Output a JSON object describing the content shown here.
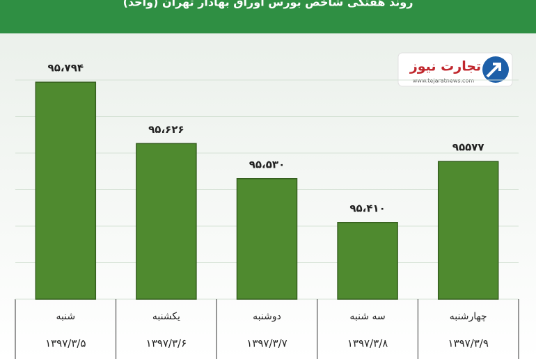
{
  "chart_data": {
    "type": "bar",
    "title": "روند هفتگی شاخص بورس اوراق بهادار تهران (واحد)",
    "categories": [
      "شنبه",
      "یکشنبه",
      "دوشنبه",
      "سه شنبه",
      "چهارشنبه"
    ],
    "dates": [
      "۱۳۹۷/۳/۵",
      "۱۳۹۷/۳/۶",
      "۱۳۹۷/۳/۷",
      "۱۳۹۷/۳/۸",
      "۱۳۹۷/۳/۹"
    ],
    "values": [
      95794,
      95626,
      95530,
      95410,
      95577
    ],
    "value_labels": [
      "۹۵،۷۹۴",
      "۹۵،۶۲۶",
      "۹۵،۵۳۰",
      "۹۵،۴۱۰",
      "۹۵۵۷۷"
    ],
    "color": "#4f8a2f",
    "ylim": [
      95200,
      95800
    ],
    "yticks": [
      95200,
      95300,
      95400,
      95500,
      95600,
      95700,
      95800
    ],
    "grid": true
  },
  "logo": {
    "name": "تجارت نیوز",
    "url": "www.tejaratnews.com"
  }
}
